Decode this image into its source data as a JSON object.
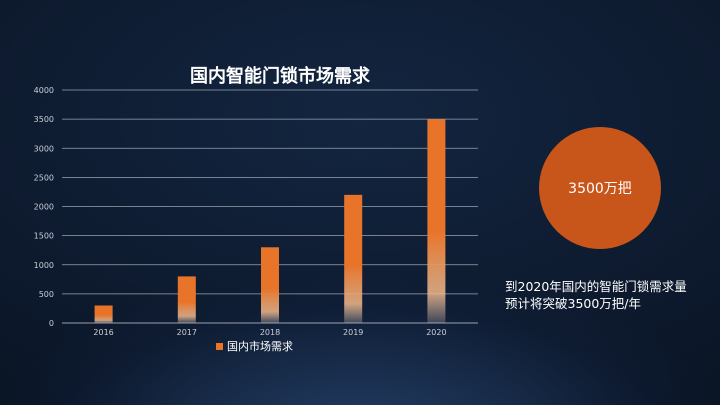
{
  "chart_data": {
    "type": "bar",
    "title": "国内智能门锁市场需求",
    "categories": [
      "2016",
      "2017",
      "2018",
      "2019",
      "2020"
    ],
    "series": [
      {
        "name": "国内市场需求",
        "values": [
          300,
          800,
          1300,
          2200,
          3500
        ]
      }
    ],
    "ylim": [
      0,
      4000
    ],
    "yticks": [
      0,
      500,
      1000,
      1500,
      2000,
      2500,
      3000,
      3500,
      4000
    ],
    "grid": true,
    "legend_position": "bottom",
    "bar_color": "#e8742a"
  },
  "callout": {
    "circle_label": "3500万把",
    "text_line1": "到2020年国内的智能门锁需求量",
    "text_line2": "预计将突破3500万把/年",
    "circle_color": "#c8561a"
  }
}
